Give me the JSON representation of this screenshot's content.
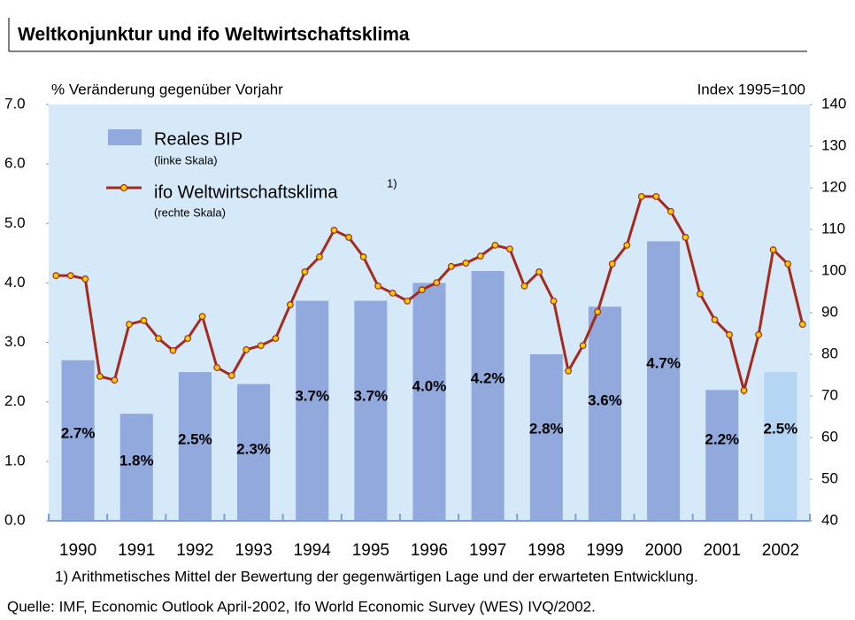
{
  "chart_data": {
    "type": "bar-line",
    "title": "Weltkonjunktur und ifo Weltwirtschaftsklima",
    "y_axis_label": "%  Veränderung gegenüber Vorjahr",
    "y2_axis_label": "Index 1995=100",
    "footnote": "1) Arithmetisches Mittel der Bewertung der gegenwärtigen Lage und der erwarteten Entwicklung.",
    "source": "Quelle: IMF, Economic Outlook April-2002, Ifo World Economic Survey (WES) IVQ/2002.",
    "categories": [
      "1990",
      "1991",
      "1992",
      "1993",
      "1994",
      "1995",
      "1996",
      "1997",
      "1998",
      "1999",
      "2000",
      "2001",
      "2002"
    ],
    "ylim": [
      0,
      7
    ],
    "yticks": [
      {
        "value": 0,
        "label": "0.0"
      },
      {
        "value": 1,
        "label": "1.0"
      },
      {
        "value": 2,
        "label": "2.0"
      },
      {
        "value": 3,
        "label": "3.0"
      },
      {
        "value": 4,
        "label": "4.0"
      },
      {
        "value": 5,
        "label": "5.0"
      },
      {
        "value": 6,
        "label": "6.0"
      },
      {
        "value": 7,
        "label": "7.0"
      }
    ],
    "y2lim": [
      40,
      140
    ],
    "y2ticks": [
      40,
      50,
      60,
      70,
      80,
      90,
      100,
      110,
      120,
      130,
      140
    ],
    "series": [
      {
        "name": "Reales BIP",
        "note": "(linke Skala)",
        "type": "bar",
        "color": "#91a9dc",
        "colors": [
          "#91a9dc",
          "#91a9dc",
          "#91a9dc",
          "#91a9dc",
          "#91a9dc",
          "#91a9dc",
          "#91a9dc",
          "#91a9dc",
          "#91a9dc",
          "#91a9dc",
          "#91a9dc",
          "#91a9dc",
          "#b5d5f5"
        ],
        "values": [
          2.7,
          1.8,
          2.5,
          2.3,
          3.7,
          3.7,
          4.0,
          4.2,
          2.8,
          3.6,
          4.7,
          2.2,
          2.5
        ],
        "value_labels": [
          "2.7%",
          "1.8%",
          "2.5%",
          "2.3%",
          "3.7%",
          "3.7%",
          "4.0%",
          "4.2%",
          "2.8%",
          "3.6%",
          "4.7%",
          "2.2%",
          "2.5%"
        ]
      },
      {
        "name": "ifo Weltwirtschaftsklima",
        "note": "(rechte Skala)",
        "marker_note": "1)",
        "type": "line",
        "axis": "y2",
        "color": "#a52a1e",
        "marker_color": "#f5d000",
        "x": [
          1990,
          1990.25,
          1990.5,
          1990.75,
          1991,
          1991.25,
          1991.5,
          1991.75,
          1992,
          1992.25,
          1992.5,
          1992.75,
          1993,
          1993.25,
          1993.5,
          1993.75,
          1994,
          1994.25,
          1994.5,
          1994.75,
          1995,
          1995.25,
          1995.5,
          1995.75,
          1996,
          1996.25,
          1996.5,
          1996.75,
          1997,
          1997.25,
          1997.5,
          1997.75,
          1998,
          1998.25,
          1998.5,
          1998.75,
          1999,
          1999.25,
          1999.5,
          1999.75,
          2000,
          2000.25,
          2000.5,
          2000.75,
          2001,
          2001.25,
          2001.5,
          2001.75,
          2002,
          2002.25,
          2002.5,
          2002.75
        ],
        "values": [
          98.9,
          98.9,
          98.1,
          74.7,
          73.8,
          87.2,
          88.1,
          83.8,
          80.9,
          83.8,
          89.1,
          76.8,
          74.9,
          81.1,
          82.1,
          83.8,
          91.9,
          99.8,
          103.4,
          109.8,
          108.1,
          103.4,
          96.4,
          94.7,
          92.8,
          95.5,
          97.2,
          101.1,
          101.9,
          103.6,
          106.2,
          105.3,
          96.4,
          99.8,
          92.8,
          76.0,
          82.1,
          90.2,
          101.7,
          106.2,
          117.9,
          117.9,
          114.3,
          108.1,
          94.5,
          88.3,
          84.7,
          71.3,
          84.7,
          105.1,
          101.7,
          87.2
        ]
      }
    ]
  }
}
